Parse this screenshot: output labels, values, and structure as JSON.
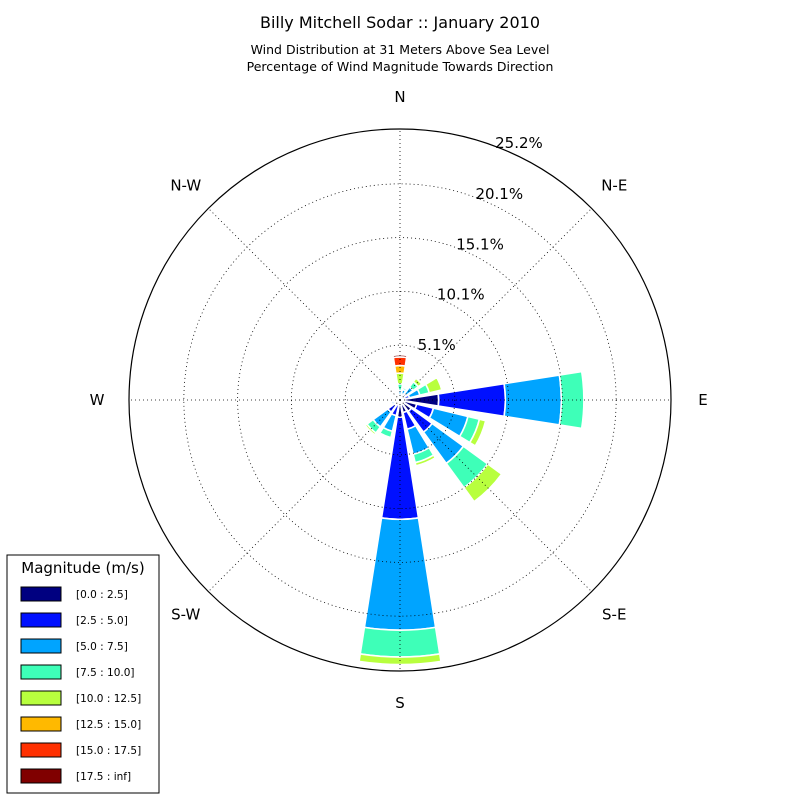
{
  "chart_data": {
    "type": "windrose",
    "title": "Billy Mitchell Sodar :: January 2010",
    "subtitle_lines": [
      "Wind Distribution at 31 Meters Above Sea Level",
      "Percentage of Wind Magnitude Towards Direction"
    ],
    "direction_labels": [
      "N",
      "N-E",
      "E",
      "S-E",
      "S",
      "S-W",
      "W",
      "N-W"
    ],
    "radial_labels": [
      "5.1%",
      "10.1%",
      "15.1%",
      "20.1%",
      "25.2%"
    ],
    "radial_ticks": [
      5.1,
      10.1,
      15.1,
      20.1,
      25.2
    ],
    "r_max": 25.2,
    "grid": true,
    "legend_position": "bottom-left",
    "legend_title": "Magnitude (m/s)",
    "bins": [
      {
        "label": "[0.0 : 2.5]",
        "color": "#000080"
      },
      {
        "label": "[2.5 : 5.0]",
        "color": "#0010ff"
      },
      {
        "label": "[5.0 : 7.5]",
        "color": "#00a4ff"
      },
      {
        "label": "[7.5 : 10.0]",
        "color": "#3effb8"
      },
      {
        "label": "[10.0 : 12.5]",
        "color": "#b8ff3e"
      },
      {
        "label": "[12.5 : 15.0]",
        "color": "#ffb900"
      },
      {
        "label": "[15.0 : 17.5]",
        "color": "#ff3000"
      },
      {
        "label": "[17.5 : inf]",
        "color": "#800000"
      }
    ],
    "sectors": [
      {
        "direction_deg": 0,
        "values": [
          0.2,
          0.2,
          0.5,
          0.6,
          1.0,
          0.7,
          0.8,
          0.2
        ]
      },
      {
        "direction_deg": 22.5,
        "values": [
          0.3,
          0.3,
          0.4,
          0.2,
          0.1,
          0.0,
          0.0,
          0.0
        ]
      },
      {
        "direction_deg": 45,
        "values": [
          0.3,
          0.4,
          0.8,
          0.6,
          0.4,
          0.0,
          0.0,
          0.0
        ]
      },
      {
        "direction_deg": 67.5,
        "values": [
          0.4,
          0.5,
          1.0,
          0.9,
          1.2,
          0.0,
          0.0,
          0.0
        ]
      },
      {
        "direction_deg": 90,
        "values": [
          3.6,
          6.2,
          5.2,
          2.1,
          0.0,
          0.0,
          0.0,
          0.0
        ]
      },
      {
        "direction_deg": 112.5,
        "values": [
          1.6,
          1.6,
          3.3,
          1.1,
          0.6,
          0.0,
          0.0,
          0.0
        ]
      },
      {
        "direction_deg": 135,
        "values": [
          1.3,
          2.4,
          3.6,
          2.8,
          1.6,
          0.0,
          0.0,
          0.0
        ]
      },
      {
        "direction_deg": 157.5,
        "values": [
          1.2,
          1.6,
          2.4,
          0.8,
          0.3,
          0.0,
          0.0,
          0.0
        ]
      },
      {
        "direction_deg": 180,
        "values": [
          1.6,
          9.5,
          10.3,
          2.5,
          0.7,
          0.0,
          0.0,
          0.0
        ]
      },
      {
        "direction_deg": 202.5,
        "values": [
          0.5,
          1.0,
          1.5,
          0.6,
          0.0,
          0.0,
          0.0,
          0.0
        ]
      },
      {
        "direction_deg": 225,
        "values": [
          0.6,
          0.8,
          1.7,
          0.7,
          0.2,
          0.0,
          0.0,
          0.0
        ]
      },
      {
        "direction_deg": 247.5,
        "values": [
          0.3,
          0.3,
          0.2,
          0.0,
          0.0,
          0.0,
          0.0,
          0.0
        ]
      },
      {
        "direction_deg": 270,
        "values": [
          0.2,
          0.1,
          0.0,
          0.0,
          0.0,
          0.0,
          0.0,
          0.0
        ]
      },
      {
        "direction_deg": 292.5,
        "values": [
          0.1,
          0.1,
          0.0,
          0.0,
          0.0,
          0.0,
          0.0,
          0.0
        ]
      },
      {
        "direction_deg": 315,
        "values": [
          0.1,
          0.1,
          0.0,
          0.0,
          0.0,
          0.0,
          0.0,
          0.0
        ]
      },
      {
        "direction_deg": 337.5,
        "values": [
          0.1,
          0.1,
          0.1,
          0.0,
          0.0,
          0.0,
          0.0,
          0.0
        ]
      }
    ]
  }
}
